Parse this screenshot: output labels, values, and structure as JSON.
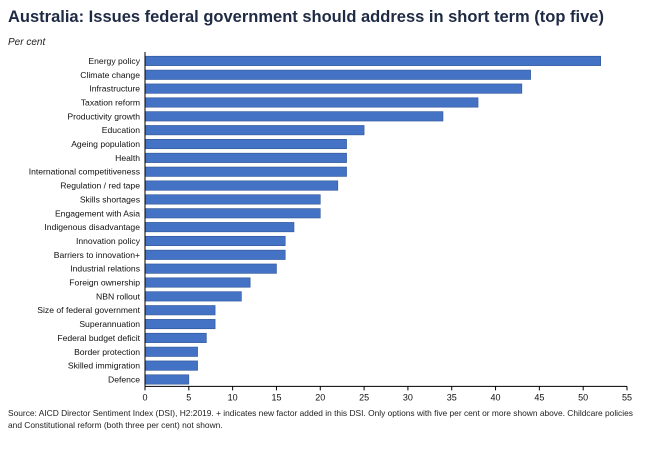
{
  "title": "Australia: Issues federal government should address in short term (top five)",
  "subtitle": "Per cent",
  "source": "Source: AICD Director Sentiment Index (DSI), H2:2019. + indicates new factor added in this DSI. Only options with five per cent or more shown above. Childcare policies and Constitutional reform (both three per cent) not shown.",
  "colors": {
    "bar": "#4472c4",
    "bar_edge": "#2f5597",
    "axis": "#000000"
  },
  "chart_data": {
    "type": "bar",
    "orientation": "horizontal",
    "title": "Australia: Issues federal government should address in short term (top five)",
    "xlabel": "",
    "ylabel": "Per cent",
    "xlim": [
      0,
      55
    ],
    "xticks": [
      0,
      5,
      10,
      15,
      20,
      25,
      30,
      35,
      40,
      45,
      50,
      55
    ],
    "grid": false,
    "categories": [
      "Energy policy",
      "Climate change",
      "Infrastructure",
      "Taxation reform",
      "Productivity growth",
      "Education",
      "Ageing population",
      "Health",
      "International competitiveness",
      "Regulation / red tape",
      "Skills shortages",
      "Engagement with Asia",
      "Indigenous disadvantage",
      "Innovation policy",
      "Barriers to innovation+",
      "Industrial relations",
      "Foreign ownership",
      "NBN rollout",
      "Size of federal government",
      "Superannuation",
      "Federal budget deficit",
      "Border protection",
      "Skilled immigration",
      "Defence"
    ],
    "values": [
      52,
      44,
      43,
      38,
      34,
      25,
      23,
      23,
      23,
      22,
      20,
      20,
      17,
      16,
      16,
      15,
      12,
      11,
      8,
      8,
      7,
      6,
      6,
      5
    ]
  }
}
